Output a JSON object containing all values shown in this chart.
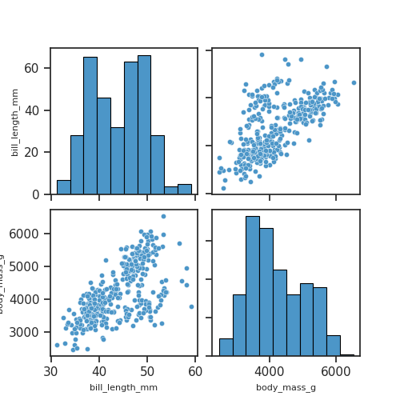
{
  "vars": [
    "bill_length_mm",
    "body_mass_g"
  ],
  "color": "#4c96c8",
  "figsize": [
    5.0,
    5.0
  ],
  "dpi": 100,
  "hist_bins": 10,
  "marker_size": 20
}
